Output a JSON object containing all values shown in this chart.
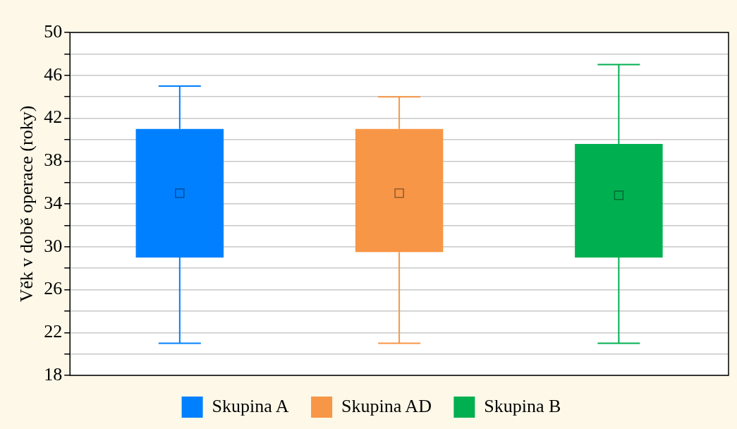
{
  "chart_data": {
    "type": "box",
    "ylabel": "Věk v době operace (roky)",
    "categories": [
      null,
      null,
      null
    ],
    "series": [
      {
        "name": "Skupina A",
        "color": "#0080ff",
        "boxes": [
          {
            "low": 21,
            "q1": 29,
            "median": 35,
            "q3": 41,
            "high": 45
          },
          null,
          null
        ]
      },
      {
        "name": "Skupina AD",
        "color": "#f79646",
        "boxes": [
          null,
          {
            "low": 21,
            "q1": 29.5,
            "median": 35,
            "q3": 41,
            "high": 44
          },
          null
        ]
      },
      {
        "name": "Skupina B",
        "color": "#00b050",
        "boxes": [
          null,
          null,
          {
            "low": 21,
            "q1": 29,
            "median": 34.8,
            "q3": 39.6,
            "high": 47
          }
        ]
      }
    ],
    "ylim": [
      18,
      50
    ],
    "yticks": [
      18,
      {
        "value": 20,
        "label": null
      },
      22,
      {
        "value": 24,
        "label": null
      },
      26,
      {
        "value": 28,
        "label": null
      },
      30,
      {
        "value": 32,
        "label": null
      },
      34,
      {
        "value": 36,
        "label": null
      },
      38,
      {
        "value": 40,
        "label": null
      },
      42,
      {
        "value": 44,
        "label": null
      },
      46,
      {
        "value": 48,
        "label": null
      },
      50
    ],
    "grid": true,
    "legend": "bottom",
    "marker": "square"
  }
}
